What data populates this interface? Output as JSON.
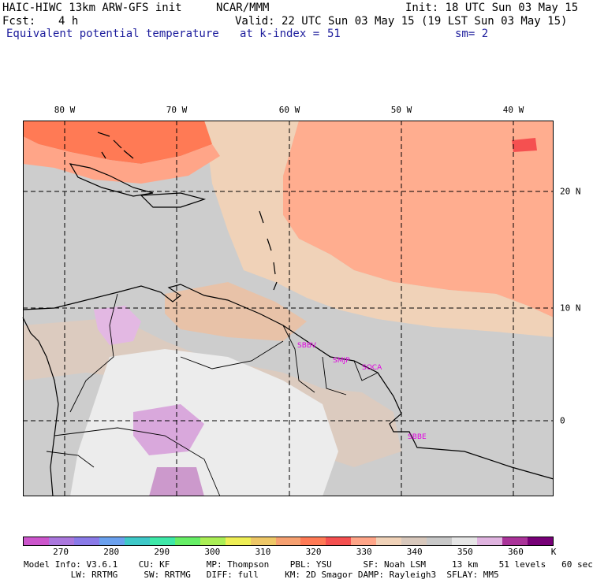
{
  "header": {
    "left1": "HAIC-HIWC 13km ARW-GFS init",
    "left1b": "NCAR/MMM",
    "init": "Init: 18 UTC Sun 03 May 15",
    "fcst_label": "Fcst:",
    "fcst_value": "4 h",
    "valid": "Valid: 22 UTC Sun 03 May 15 (19 LST Sun 03 May 15)",
    "field": "Equivalent potential temperature",
    "level": "at k-index =",
    "level_value": "51",
    "smooth": "sm= 2"
  },
  "map": {
    "lon_labels": [
      "80 W",
      "70 W",
      "60 W",
      "50 W",
      "40 W"
    ],
    "lat_labels": [
      "20 N",
      "10 N",
      "0"
    ],
    "stations": [
      "SBBV",
      "SMJP",
      "SOCA",
      "SBBE"
    ],
    "background_color": "#cdcdcd"
  },
  "colorbar": {
    "colors": [
      "#cc55cc",
      "#aa77dd",
      "#8a7ae8",
      "#6aa0ee",
      "#3ec8c8",
      "#3ee8a8",
      "#66ee66",
      "#aaee55",
      "#eeee55",
      "#eec766",
      "#f6a070",
      "#ff7a55",
      "#f55050",
      "#ffa588",
      "#f0d2b8",
      "#d8c8bc",
      "#c8c8c8",
      "#e6e6e6",
      "#e0b4e0",
      "#aa3399",
      "#770077"
    ],
    "labels": [
      "270",
      "280",
      "290",
      "300",
      "310",
      "320",
      "330",
      "340",
      "350",
      "360"
    ],
    "unit": "K"
  },
  "model_info": {
    "line1": "Model Info: V3.6.1    CU: KF       MP: Thompson    PBL: YSU      SF: Noah LSM     13 km    51 levels   60 sec",
    "line2": "         LW: RRTMG     SW: RRTMG   DIFF: full     KM: 2D Smagor DAMP: Rayleigh3  SFLAY: MM5"
  }
}
